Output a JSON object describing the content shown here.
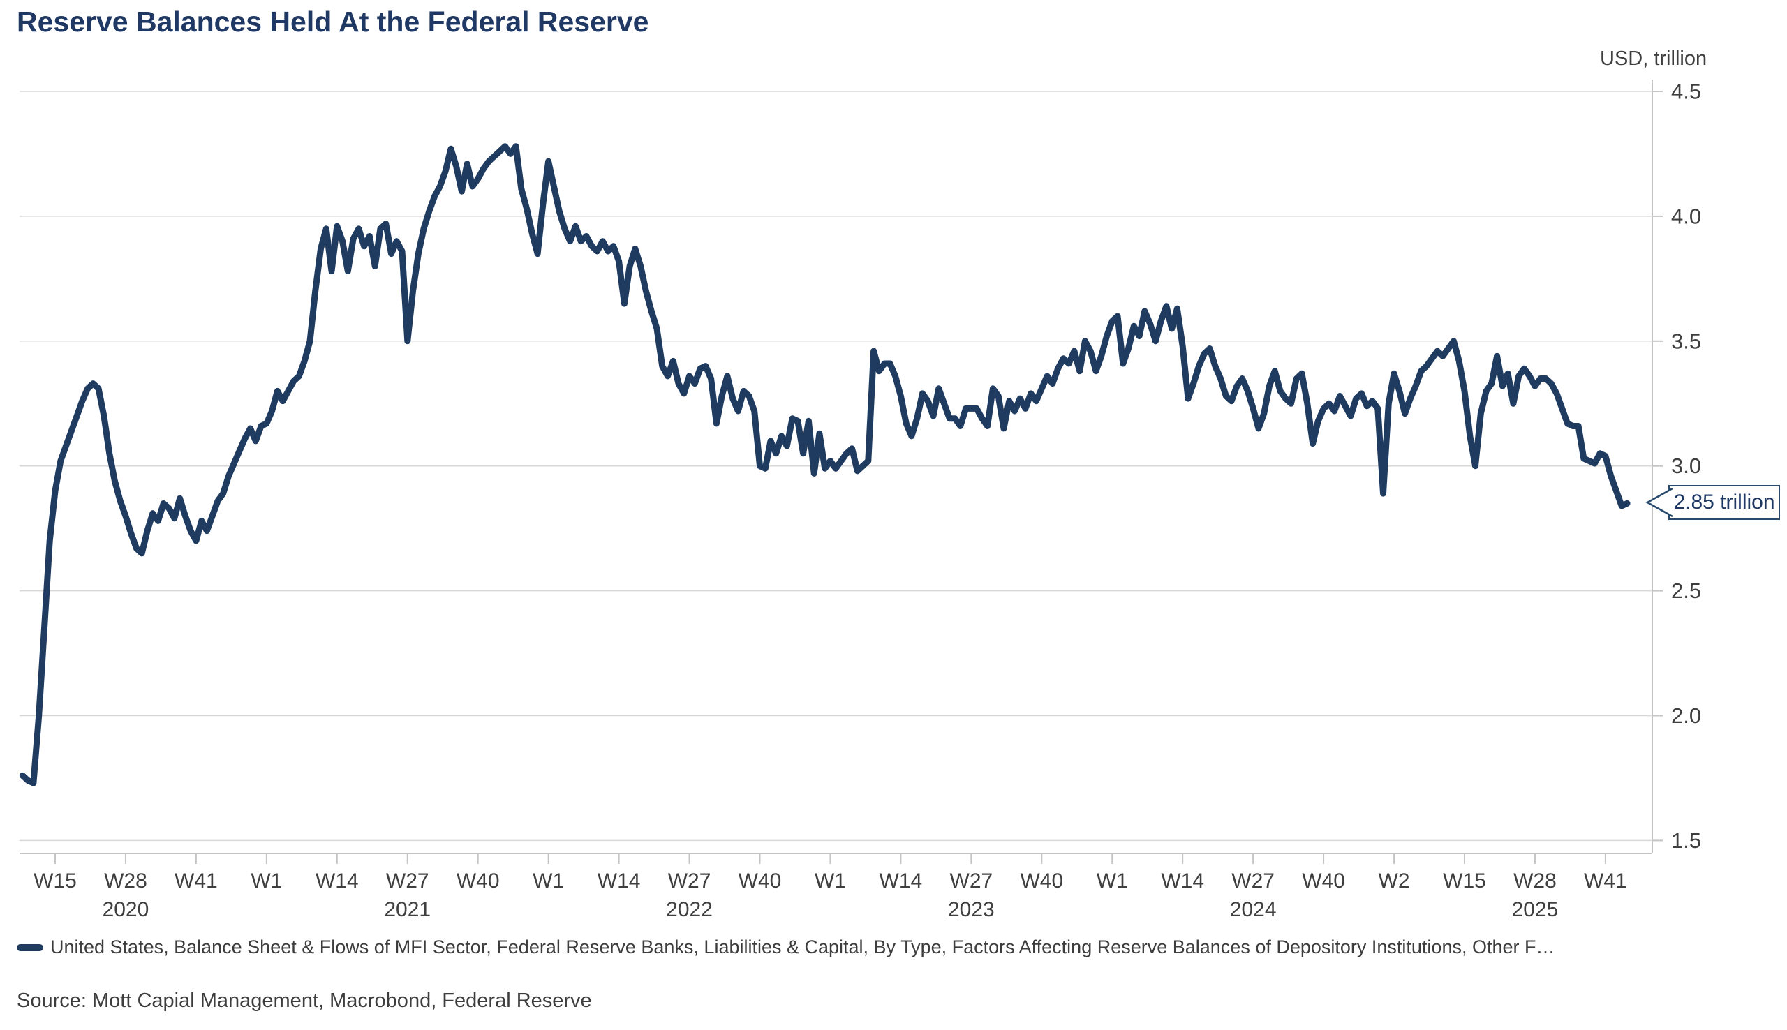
{
  "title": "Reserve Balances Held At the Federal Reserve",
  "y_axis": {
    "unit_label": "USD, trillion",
    "tick_labels": [
      "4.5",
      "4.0",
      "3.5",
      "3.0",
      "2.5",
      "2.0",
      "1.5"
    ]
  },
  "x_axis": {
    "tick_labels": [
      "W15",
      "W28",
      "W41",
      "W1",
      "W14",
      "W27",
      "W40",
      "W1",
      "W14",
      "W27",
      "W40",
      "W1",
      "W14",
      "W27",
      "W40",
      "W1",
      "W14",
      "W27",
      "W40",
      "W2",
      "W15",
      "W28",
      "W41"
    ],
    "year_labels": [
      {
        "text": "2020",
        "tick_index": 1
      },
      {
        "text": "2021",
        "tick_index": 5
      },
      {
        "text": "2022",
        "tick_index": 9
      },
      {
        "text": "2023",
        "tick_index": 13
      },
      {
        "text": "2024",
        "tick_index": 17
      },
      {
        "text": "2025",
        "tick_index": 21
      }
    ]
  },
  "callout": {
    "text": "2.85 trillion"
  },
  "legend": {
    "label": "United States, Balance Sheet & Flows of MFI Sector, Federal Reserve Banks, Liabilities & Capital, By Type, Factors Affecting Reserve Balances of Depository Institutions, Other F…"
  },
  "source_text": "Source: Mott Capial Management, Macrobond, Federal Reserve",
  "colors": {
    "title": "#1f3864",
    "line": "#1f3b60",
    "grid": "#d8d8d8",
    "axis": "#c4c4c4",
    "tick_text": "#3f3f3f",
    "callout_border": "#27496b",
    "background": "#ffffff"
  },
  "chart_data": {
    "type": "line",
    "title": "Reserve Balances Held At the Federal Reserve",
    "unit": "USD trillion",
    "frequency": "weekly",
    "start_week": "2020-W09",
    "end_week": "2025-W44",
    "ylim": [
      1.5,
      4.5
    ],
    "y_gridlines": [
      4.5,
      4.0,
      3.5,
      3.0,
      2.5,
      2.0,
      1.5
    ],
    "grid": "horizontal-only",
    "legend_position": "bottom",
    "last_value": 2.85,
    "values": [
      1.76,
      1.74,
      1.73,
      2.0,
      2.35,
      2.7,
      2.9,
      3.02,
      3.08,
      3.14,
      3.2,
      3.26,
      3.31,
      3.33,
      3.31,
      3.2,
      3.05,
      2.94,
      2.86,
      2.8,
      2.73,
      2.67,
      2.65,
      2.74,
      2.81,
      2.78,
      2.85,
      2.83,
      2.79,
      2.87,
      2.8,
      2.74,
      2.7,
      2.78,
      2.74,
      2.8,
      2.86,
      2.89,
      2.96,
      3.01,
      3.06,
      3.11,
      3.15,
      3.1,
      3.16,
      3.17,
      3.22,
      3.3,
      3.26,
      3.3,
      3.34,
      3.36,
      3.42,
      3.5,
      3.7,
      3.87,
      3.95,
      3.78,
      3.96,
      3.9,
      3.78,
      3.91,
      3.95,
      3.88,
      3.92,
      3.8,
      3.95,
      3.97,
      3.85,
      3.9,
      3.86,
      3.5,
      3.7,
      3.85,
      3.95,
      4.02,
      4.08,
      4.12,
      4.18,
      4.27,
      4.2,
      4.1,
      4.21,
      4.12,
      4.15,
      4.19,
      4.22,
      4.24,
      4.26,
      4.28,
      4.25,
      4.28,
      4.11,
      4.03,
      3.93,
      3.85,
      4.05,
      4.22,
      4.12,
      4.02,
      3.95,
      3.9,
      3.96,
      3.9,
      3.92,
      3.88,
      3.86,
      3.9,
      3.86,
      3.88,
      3.82,
      3.65,
      3.8,
      3.87,
      3.8,
      3.7,
      3.62,
      3.55,
      3.4,
      3.36,
      3.42,
      3.33,
      3.29,
      3.36,
      3.33,
      3.39,
      3.4,
      3.35,
      3.17,
      3.28,
      3.36,
      3.27,
      3.22,
      3.3,
      3.28,
      3.22,
      3.0,
      2.99,
      3.1,
      3.05,
      3.12,
      3.08,
      3.19,
      3.18,
      3.05,
      3.18,
      2.97,
      3.13,
      2.99,
      3.02,
      2.99,
      3.02,
      3.05,
      3.07,
      2.98,
      3.0,
      3.02,
      3.46,
      3.38,
      3.41,
      3.41,
      3.36,
      3.28,
      3.17,
      3.12,
      3.19,
      3.29,
      3.26,
      3.2,
      3.31,
      3.25,
      3.19,
      3.19,
      3.16,
      3.23,
      3.23,
      3.23,
      3.19,
      3.16,
      3.31,
      3.28,
      3.15,
      3.26,
      3.22,
      3.27,
      3.23,
      3.29,
      3.26,
      3.31,
      3.36,
      3.33,
      3.39,
      3.43,
      3.41,
      3.46,
      3.38,
      3.5,
      3.46,
      3.38,
      3.44,
      3.52,
      3.58,
      3.6,
      3.41,
      3.47,
      3.56,
      3.52,
      3.62,
      3.57,
      3.5,
      3.58,
      3.64,
      3.55,
      3.63,
      3.48,
      3.27,
      3.33,
      3.4,
      3.45,
      3.47,
      3.4,
      3.35,
      3.28,
      3.26,
      3.32,
      3.35,
      3.3,
      3.23,
      3.15,
      3.21,
      3.32,
      3.38,
      3.3,
      3.27,
      3.25,
      3.35,
      3.37,
      3.25,
      3.09,
      3.18,
      3.23,
      3.25,
      3.22,
      3.28,
      3.24,
      3.2,
      3.27,
      3.29,
      3.24,
      3.26,
      3.23,
      2.89,
      3.25,
      3.37,
      3.3,
      3.21,
      3.27,
      3.32,
      3.38,
      3.4,
      3.43,
      3.46,
      3.44,
      3.47,
      3.5,
      3.42,
      3.3,
      3.12,
      3.0,
      3.21,
      3.3,
      3.33,
      3.44,
      3.32,
      3.37,
      3.25,
      3.36,
      3.39,
      3.36,
      3.32,
      3.35,
      3.35,
      3.33,
      3.29,
      3.23,
      3.17,
      3.16,
      3.16,
      3.03,
      3.02,
      3.01,
      3.05,
      3.04,
      2.96,
      2.9,
      2.84,
      2.85
    ]
  }
}
